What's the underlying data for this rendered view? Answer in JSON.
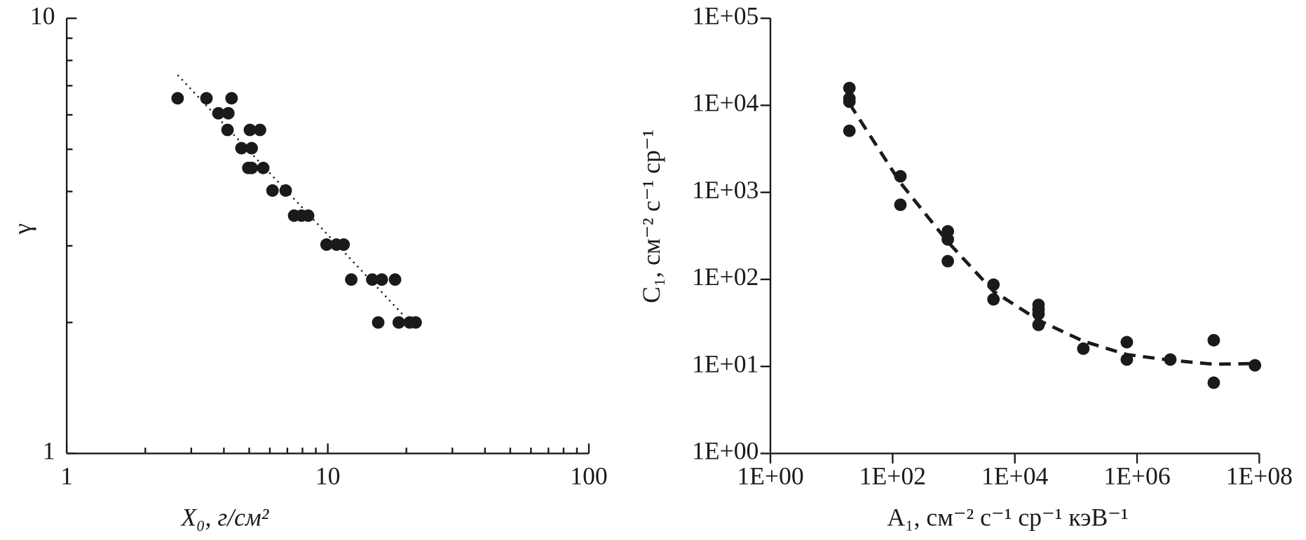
{
  "chart_data": [
    {
      "type": "scatter",
      "x_label": "X₀, г/см²",
      "y_label": "γ",
      "xlog": true,
      "ylog": true,
      "xlim": [
        1,
        100
      ],
      "ylim": [
        1,
        10
      ],
      "xticks": [
        1,
        10,
        100
      ],
      "yticks": [
        1,
        10
      ],
      "minor_ticks": true,
      "tick_direction": "in",
      "color": "#1a1a1a",
      "x": [
        2.66,
        3.43,
        3.81,
        4.16,
        4.28,
        4.13,
        5.03,
        5.5,
        4.67,
        5.11,
        4.96,
        5.11,
        5.66,
        6.14,
        6.9,
        7.43,
        7.93,
        8.41,
        9.89,
        10.8,
        11.5,
        12.3,
        14.8,
        16.1,
        18.1,
        15.6,
        18.7,
        20.6,
        21.7
      ],
      "y": [
        6.55,
        6.55,
        6.05,
        6.05,
        6.55,
        5.54,
        5.54,
        5.54,
        5.03,
        5.03,
        4.53,
        4.53,
        4.53,
        4.02,
        4.02,
        3.52,
        3.52,
        3.52,
        3.02,
        3.02,
        3.02,
        2.51,
        2.51,
        2.51,
        2.51,
        2.0,
        2.0,
        2.0,
        2.0
      ],
      "fit": {
        "style": "dotted",
        "x": [
          2.66,
          19.6
        ],
        "y": [
          7.41,
          2.07
        ]
      }
    },
    {
      "type": "scatter",
      "x_label": "A₁, см⁻² с⁻¹ ср⁻¹ кэВ⁻¹",
      "y_label": "C₁, см⁻² с⁻¹ ср⁻¹",
      "xlog": true,
      "ylog": true,
      "xlim": [
        1,
        100000000
      ],
      "ylim": [
        1,
        100000
      ],
      "xticks": [
        {
          "value": 1,
          "label": "1E+00"
        },
        {
          "value": 100,
          "label": "1E+02"
        },
        {
          "value": 10000,
          "label": "1E+04"
        },
        {
          "value": 1000000,
          "label": "1E+06"
        },
        {
          "value": 100000000,
          "label": "1E+08"
        }
      ],
      "yticks": [
        {
          "value": 1,
          "label": "1E+00"
        },
        {
          "value": 10,
          "label": "1E+01"
        },
        {
          "value": 100,
          "label": "1E+02"
        },
        {
          "value": 1000,
          "label": "1E+03"
        },
        {
          "value": 10000,
          "label": "1E+04"
        },
        {
          "value": 100000,
          "label": "1E+05"
        }
      ],
      "minor_ticks": false,
      "tick_direction": "out",
      "color": "#1a1a1a",
      "x": [
        19.6,
        19.6,
        19.6,
        19.6,
        134,
        134,
        800,
        800,
        800,
        4470,
        4470,
        24400,
        24400,
        24400,
        24400,
        132000,
        680000,
        680000,
        3500000,
        18000000,
        18000000,
        85000000
      ],
      "y": [
        15800,
        12000,
        11000,
        5100,
        1530,
        720,
        357,
        288,
        162,
        87,
        59,
        51,
        45,
        40,
        30,
        16,
        19,
        12,
        12,
        20,
        6.5,
        10.3
      ],
      "fit": {
        "style": "dashed",
        "x": [
          19.6,
          134,
          800,
          4470,
          24400,
          132000,
          680000,
          3500000,
          18000000,
          85000000
        ],
        "y": [
          10500,
          1290,
          270,
          73,
          34,
          19.5,
          13.7,
          11.8,
          10.6,
          10.8
        ]
      }
    }
  ]
}
